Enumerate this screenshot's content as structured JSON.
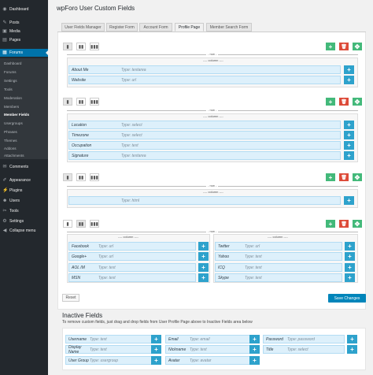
{
  "sidebar": {
    "top_items": [
      {
        "label": "Dashboard",
        "icon": "gauge-icon"
      },
      {
        "label": "Posts",
        "icon": "pin-icon"
      },
      {
        "label": "Media",
        "icon": "media-icon"
      },
      {
        "label": "Pages",
        "icon": "pages-icon"
      },
      {
        "label": "Forums",
        "icon": "forums-icon"
      }
    ],
    "forum_submenu": [
      "Dashboard",
      "Forums",
      "Settings",
      "Tools",
      "Moderation",
      "Members",
      "Member Fields",
      "Usergroups",
      "Phrases",
      "Themes",
      "Addons",
      "Attachments"
    ],
    "bottom_items": [
      {
        "label": "Comments",
        "icon": "comment-icon"
      },
      {
        "label": "Appearance",
        "icon": "brush-icon"
      },
      {
        "label": "Plugins",
        "icon": "plug-icon"
      },
      {
        "label": "Users",
        "icon": "users-icon"
      },
      {
        "label": "Tools",
        "icon": "wrench-icon"
      },
      {
        "label": "Settings",
        "icon": "settings-icon"
      },
      {
        "label": "Collapse menu",
        "icon": "collapse-icon"
      }
    ]
  },
  "page": {
    "title": "wpForo User Custom Fields"
  },
  "tabs": [
    "User Fields Manager",
    "Register Form",
    "Account Form",
    "Profile Page",
    "Member Search Form"
  ],
  "labels": {
    "row": "row",
    "column": "column",
    "reset": "Reset",
    "save": "Save Changes"
  },
  "rows": [
    {
      "fields": [
        {
          "name": "About Me",
          "type": "Type: textarea"
        },
        {
          "name": "Website",
          "type": "Type: url"
        }
      ]
    },
    {
      "fields": [
        {
          "name": "Location",
          "type": "Type: select"
        },
        {
          "name": "Timezone",
          "type": "Type: select"
        },
        {
          "name": "Occupation",
          "type": "Type: text"
        },
        {
          "name": "Signature",
          "type": "Type: textarea"
        }
      ]
    },
    {
      "fields": [
        {
          "name": "",
          "type": "Type: html"
        }
      ]
    },
    {
      "col1": [
        {
          "name": "Facebook",
          "type": "Type: url"
        },
        {
          "name": "Google+",
          "type": "Type: url"
        },
        {
          "name": "AOL IM",
          "type": "Type: text"
        },
        {
          "name": "MSN",
          "type": "Type: text"
        }
      ],
      "col2": [
        {
          "name": "Twitter",
          "type": "Type: url"
        },
        {
          "name": "Yahoo",
          "type": "Type: text"
        },
        {
          "name": "ICQ",
          "type": "Type: text"
        },
        {
          "name": "Skype",
          "type": "Type: text"
        }
      ]
    }
  ],
  "inactive": {
    "title": "Inactive Fields",
    "description": "To remove custom fields, just drag and drop fields from User Profile Page above to Inactive Fields area below",
    "fields": [
      {
        "name": "Username",
        "type": "Type: text"
      },
      {
        "name": "Email",
        "type": "Type: email"
      },
      {
        "name": "Password",
        "type": "Type: password"
      },
      {
        "name": "Display Name",
        "type": "Type: text"
      },
      {
        "name": "Nickname",
        "type": "Type: text"
      },
      {
        "name": "Title",
        "type": "Type: select"
      },
      {
        "name": "User Group",
        "type": "Type: usergroup"
      },
      {
        "name": "Avatar",
        "type": "Type: avatar"
      }
    ]
  },
  "colors": {
    "sidebar_bg": "#23282d",
    "active_menu": "#0073aa",
    "field_bg": "#ddf0fb",
    "add_button": "#2ea2cc",
    "green_button": "#43b97a",
    "red_button": "#dd4b39",
    "save_button": "#0085ba"
  }
}
